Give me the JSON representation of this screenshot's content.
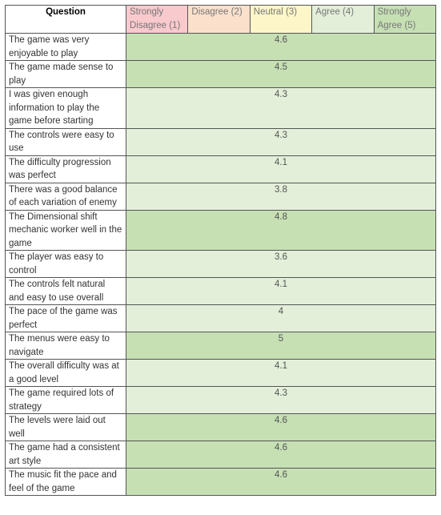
{
  "table": {
    "header": "Question",
    "scale": [
      {
        "label": "Strongly Disagree (1)",
        "color": "#f8c9cd"
      },
      {
        "label": "Disagree (2)",
        "color": "#fbe0cc"
      },
      {
        "label": "Neutral (3)",
        "color": "#fdf6c9"
      },
      {
        "label": "Agree (4)",
        "color": "#e3efd9"
      },
      {
        "label": "Strongly Agree (5)",
        "color": "#c6e0b4"
      }
    ],
    "rows": [
      {
        "question": "The game was very enjoyable to play",
        "score": 4.6,
        "color": "#c6e0b4"
      },
      {
        "question": "The game made sense to play",
        "score": 4.5,
        "color": "#c6e0b4"
      },
      {
        "question": "I was given enough information to play the game before starting",
        "score": 4.3,
        "color": "#e3efd9"
      },
      {
        "question": "The controls were easy to use",
        "score": 4.3,
        "color": "#e3efd9"
      },
      {
        "question": "The difficulty progression was perfect",
        "score": 4.1,
        "color": "#e3efd9"
      },
      {
        "question": "There was a good balance of each variation of enemy",
        "score": 3.8,
        "color": "#e3efd9"
      },
      {
        "question": "The Dimensional shift mechanic worker well in the game",
        "score": 4.8,
        "color": "#c6e0b4"
      },
      {
        "question": "The player was easy to control",
        "score": 3.6,
        "color": "#e3efd9"
      },
      {
        "question": "The controls felt natural and easy to use overall",
        "score": 4.1,
        "color": "#e3efd9"
      },
      {
        "question": "The pace of the game was perfect",
        "score": 4,
        "color": "#e3efd9"
      },
      {
        "question": "The menus were easy to navigate",
        "score": 5,
        "color": "#c6e0b4"
      },
      {
        "question": "The overall difficulty was at a good level",
        "score": 4.1,
        "color": "#e3efd9"
      },
      {
        "question": "The game required lots of strategy",
        "score": 4.3,
        "color": "#e3efd9"
      },
      {
        "question": "The levels were laid out well",
        "score": 4.6,
        "color": "#c6e0b4"
      },
      {
        "question": "The game had a consistent art style",
        "score": 4.6,
        "color": "#c6e0b4"
      },
      {
        "question": "The music fit the pace and feel of the game",
        "score": 4.6,
        "color": "#c6e0b4"
      }
    ]
  }
}
